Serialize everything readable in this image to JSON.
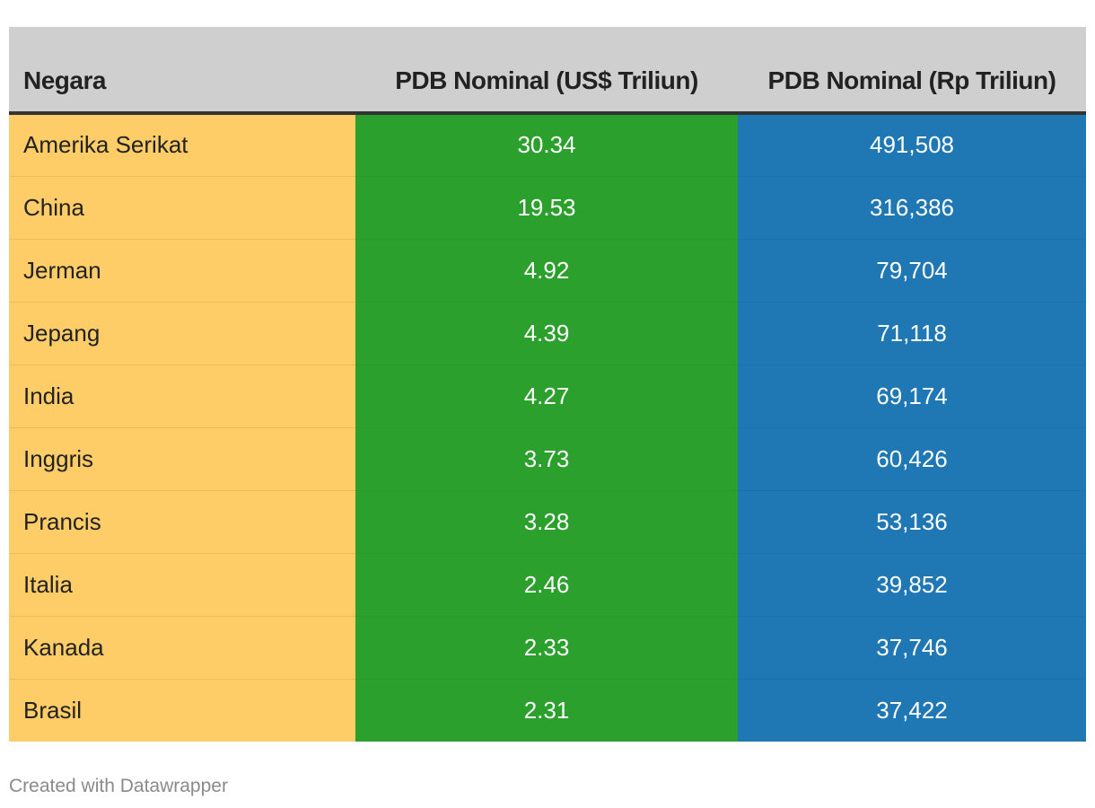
{
  "colors": {
    "header_bg": "#cfcfcf",
    "country_col": "#ffcd67",
    "usd_col": "#2ca02c",
    "idr_col": "#1f77b4"
  },
  "footer": "Created with Datawrapper",
  "chart_data": {
    "type": "table",
    "title": "",
    "columns": [
      "Negara",
      "PDB Nominal (US$ Triliun)",
      "PDB Nominal (Rp Triliun)"
    ],
    "rows": [
      [
        "Amerika Serikat",
        "30.34",
        "491,508"
      ],
      [
        "China",
        "19.53",
        "316,386"
      ],
      [
        "Jerman",
        "4.92",
        "79,704"
      ],
      [
        "Jepang",
        "4.39",
        "71,118"
      ],
      [
        "India",
        "4.27",
        "69,174"
      ],
      [
        "Inggris",
        "3.73",
        "60,426"
      ],
      [
        "Prancis",
        "3.28",
        "53,136"
      ],
      [
        "Italia",
        "2.46",
        "39,852"
      ],
      [
        "Kanada",
        "2.33",
        "37,746"
      ],
      [
        "Brasil",
        "2.31",
        "37,422"
      ]
    ]
  }
}
